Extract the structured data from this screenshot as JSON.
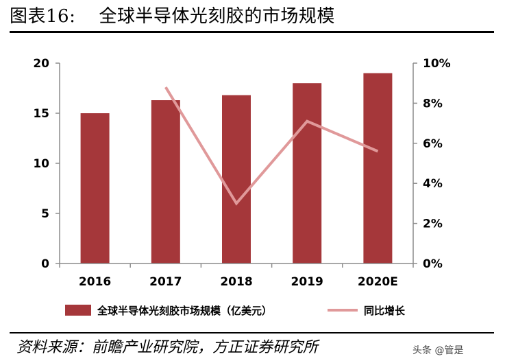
{
  "header": {
    "figure_label": "图表16:",
    "title": "全球半导体光刻胶的市场规模"
  },
  "chart_data": {
    "type": "bar",
    "categories": [
      "2016",
      "2017",
      "2018",
      "2019",
      "2020E"
    ],
    "series": [
      {
        "name": "全球半导体光刻胶市场规模（亿美元）",
        "type": "bar",
        "axis": "left",
        "values": [
          15.0,
          16.3,
          16.8,
          18.0,
          19.0
        ]
      },
      {
        "name": "同比增长",
        "type": "line",
        "axis": "right",
        "values": [
          null,
          0.088,
          0.03,
          0.071,
          0.056
        ]
      }
    ],
    "y_left": {
      "lim": [
        0,
        20
      ],
      "ticks": [
        "0",
        "5",
        "10",
        "15",
        "20"
      ]
    },
    "y_right": {
      "lim": [
        0,
        0.1
      ],
      "ticks": [
        "0%",
        "2%",
        "4%",
        "6%",
        "8%",
        "10%"
      ]
    },
    "legend_position": "bottom",
    "grid": false,
    "colors": {
      "bar": "#A5373A",
      "line": "#E0999A",
      "axis": "#8C8C8C"
    }
  },
  "footer": {
    "source": "资料来源：前瞻产业研究院，方正证券研究所",
    "watermark": "头条 @管是"
  }
}
